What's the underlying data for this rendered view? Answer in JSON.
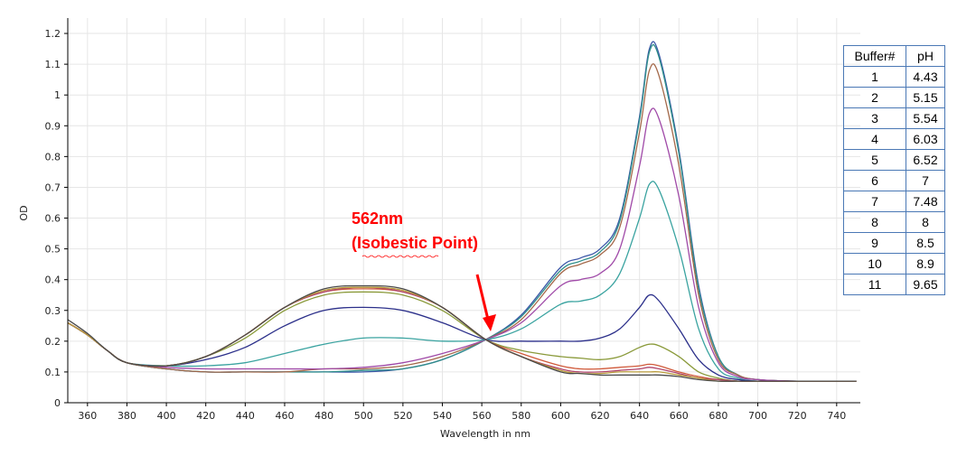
{
  "colors": {
    "axis": "#000000",
    "annotation": "#ff0000",
    "table_border": "#4a78b5"
  },
  "buffer_table": {
    "headers": [
      "Buffer#",
      "pH"
    ],
    "rows": [
      [
        "1",
        "4.43"
      ],
      [
        "2",
        "5.15"
      ],
      [
        "3",
        "5.54"
      ],
      [
        "4",
        "6.03"
      ],
      [
        "5",
        "6.52"
      ],
      [
        "6",
        "7"
      ],
      [
        "7",
        "7.48"
      ],
      [
        "8",
        "8"
      ],
      [
        "9",
        "8.5"
      ],
      [
        "10",
        "8.9"
      ],
      [
        "11",
        "9.65"
      ]
    ]
  },
  "chart_data": {
    "type": "line",
    "title": "",
    "xlabel": "Wavelength in nm",
    "ylabel": "OD",
    "xlim": [
      350,
      752
    ],
    "ylim": [
      0,
      1.25
    ],
    "xticks": [
      360,
      380,
      400,
      420,
      440,
      460,
      480,
      500,
      520,
      540,
      560,
      580,
      600,
      620,
      640,
      660,
      680,
      700,
      720,
      740
    ],
    "yticks": [
      0,
      0.1,
      0.2,
      0.3,
      0.4,
      0.5,
      0.6,
      0.7,
      0.8,
      0.9,
      1,
      1.1,
      1.2
    ],
    "ytick_labels": [
      "0",
      "0.1",
      "0.2",
      "0.3",
      "0.4",
      "0.5",
      "0.6",
      "0.7",
      "0.8",
      "0.9",
      "1",
      "1.1",
      "1.2"
    ],
    "grid": true,
    "annotation": {
      "text_line1": "562nm",
      "text_line2": "(Isobestic Point)",
      "point": [
        562,
        0.205
      ]
    },
    "x": [
      350,
      360,
      370,
      380,
      400,
      420,
      440,
      460,
      480,
      500,
      520,
      540,
      562,
      580,
      600,
      610,
      620,
      630,
      640,
      645,
      650,
      660,
      670,
      680,
      690,
      700,
      720,
      740,
      750
    ],
    "series": [
      {
        "color": "#3b57a8",
        "values": [
          0.26,
          0.22,
          0.17,
          0.13,
          0.11,
          0.1,
          0.1,
          0.1,
          0.1,
          0.1,
          0.11,
          0.14,
          0.205,
          0.285,
          0.44,
          0.47,
          0.5,
          0.6,
          0.93,
          1.15,
          1.13,
          0.82,
          0.38,
          0.15,
          0.09,
          0.075,
          0.07,
          0.07,
          0.07
        ]
      },
      {
        "color": "#2f8f8a",
        "values": [
          0.26,
          0.22,
          0.17,
          0.13,
          0.11,
          0.1,
          0.1,
          0.1,
          0.1,
          0.105,
          0.11,
          0.14,
          0.205,
          0.28,
          0.43,
          0.46,
          0.49,
          0.59,
          0.92,
          1.14,
          1.12,
          0.81,
          0.37,
          0.15,
          0.09,
          0.075,
          0.07,
          0.07,
          0.07
        ]
      },
      {
        "color": "#a4694a",
        "values": [
          0.26,
          0.22,
          0.17,
          0.13,
          0.11,
          0.1,
          0.1,
          0.1,
          0.11,
          0.11,
          0.12,
          0.15,
          0.205,
          0.27,
          0.42,
          0.45,
          0.48,
          0.57,
          0.88,
          1.08,
          1.06,
          0.77,
          0.35,
          0.14,
          0.09,
          0.075,
          0.07,
          0.07,
          0.07
        ]
      },
      {
        "color": "#a04aa8",
        "values": [
          0.26,
          0.22,
          0.17,
          0.13,
          0.115,
          0.11,
          0.11,
          0.11,
          0.11,
          0.115,
          0.13,
          0.16,
          0.205,
          0.26,
          0.38,
          0.4,
          0.42,
          0.5,
          0.77,
          0.94,
          0.92,
          0.67,
          0.31,
          0.13,
          0.085,
          0.075,
          0.07,
          0.07,
          0.07
        ]
      },
      {
        "color": "#3aa3a0",
        "values": [
          0.26,
          0.22,
          0.17,
          0.13,
          0.12,
          0.12,
          0.13,
          0.16,
          0.19,
          0.21,
          0.21,
          0.2,
          0.205,
          0.24,
          0.32,
          0.33,
          0.35,
          0.42,
          0.6,
          0.71,
          0.69,
          0.5,
          0.24,
          0.11,
          0.08,
          0.07,
          0.07,
          0.07,
          0.07
        ]
      },
      {
        "color": "#2b2f8a",
        "values": [
          0.26,
          0.22,
          0.17,
          0.13,
          0.12,
          0.14,
          0.18,
          0.25,
          0.3,
          0.31,
          0.3,
          0.26,
          0.205,
          0.2,
          0.2,
          0.2,
          0.21,
          0.24,
          0.31,
          0.35,
          0.33,
          0.24,
          0.14,
          0.09,
          0.075,
          0.07,
          0.07,
          0.07,
          0.07
        ]
      },
      {
        "color": "#8a9a3a",
        "values": [
          0.26,
          0.22,
          0.17,
          0.13,
          0.12,
          0.15,
          0.21,
          0.3,
          0.35,
          0.36,
          0.35,
          0.3,
          0.205,
          0.17,
          0.15,
          0.145,
          0.14,
          0.15,
          0.18,
          0.19,
          0.185,
          0.15,
          0.1,
          0.08,
          0.07,
          0.07,
          0.07,
          0.07,
          0.07
        ]
      },
      {
        "color": "#d05a3a",
        "values": [
          0.26,
          0.22,
          0.17,
          0.13,
          0.12,
          0.15,
          0.22,
          0.31,
          0.36,
          0.37,
          0.36,
          0.31,
          0.205,
          0.16,
          0.12,
          0.11,
          0.11,
          0.115,
          0.12,
          0.125,
          0.12,
          0.1,
          0.085,
          0.075,
          0.07,
          0.07,
          0.07,
          0.07,
          0.07
        ]
      },
      {
        "color": "#b0446a",
        "values": [
          0.26,
          0.22,
          0.17,
          0.13,
          0.12,
          0.15,
          0.22,
          0.31,
          0.36,
          0.375,
          0.36,
          0.31,
          0.205,
          0.15,
          0.11,
          0.1,
          0.1,
          0.105,
          0.11,
          0.115,
          0.11,
          0.095,
          0.08,
          0.075,
          0.07,
          0.07,
          0.07,
          0.07,
          0.07
        ]
      },
      {
        "color": "#b89a3a",
        "values": [
          0.26,
          0.22,
          0.17,
          0.13,
          0.12,
          0.15,
          0.22,
          0.31,
          0.365,
          0.375,
          0.365,
          0.31,
          0.205,
          0.15,
          0.105,
          0.095,
          0.095,
          0.1,
          0.1,
          0.1,
          0.1,
          0.09,
          0.08,
          0.07,
          0.07,
          0.07,
          0.07,
          0.07,
          0.07
        ]
      },
      {
        "color": "#4a4a4a",
        "values": [
          0.27,
          0.225,
          0.17,
          0.13,
          0.12,
          0.15,
          0.22,
          0.31,
          0.37,
          0.38,
          0.37,
          0.31,
          0.205,
          0.15,
          0.1,
          0.095,
          0.09,
          0.09,
          0.09,
          0.09,
          0.09,
          0.085,
          0.075,
          0.07,
          0.07,
          0.07,
          0.07,
          0.07,
          0.07
        ]
      }
    ]
  }
}
